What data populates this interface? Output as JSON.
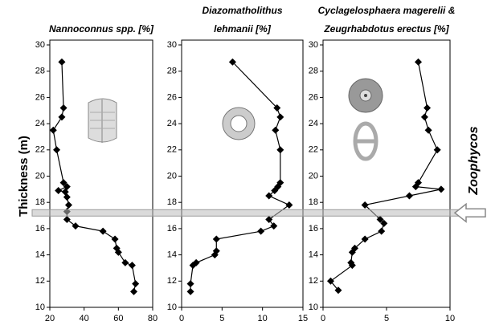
{
  "chart_data": [
    {
      "type": "line",
      "title": [
        "Nannoconnus spp. [%]"
      ],
      "ylabel": "Thickness (m)",
      "x": [
        27,
        28,
        27,
        22,
        24,
        28,
        30,
        25,
        29,
        30,
        31,
        30,
        30,
        35,
        51,
        58,
        59,
        60,
        64,
        68,
        70,
        69
      ],
      "values": [
        28.7,
        25.2,
        24.5,
        23.5,
        22,
        19.5,
        19.2,
        18.9,
        18.8,
        18.4,
        17.8,
        17.3,
        16.7,
        16.2,
        15.8,
        15.2,
        14.5,
        14.2,
        13.4,
        13.2,
        11.8,
        11.2
      ],
      "color": "#000000",
      "xlim": [
        20,
        80
      ],
      "xticks": [
        20,
        40,
        60,
        80
      ],
      "ylim": [
        10,
        30
      ],
      "yticks": [
        10,
        12,
        14,
        16,
        18,
        20,
        22,
        24,
        26,
        28,
        30
      ]
    },
    {
      "type": "line",
      "title": [
        "Diazomatholithus",
        "lehmanii [%]"
      ],
      "x": [
        6.3,
        11.8,
        12.2,
        11.6,
        12.2,
        12.2,
        11.9,
        11.5,
        10.8,
        13.3,
        10.8,
        11.4,
        9.8,
        4.3,
        4.3,
        4.1,
        1.8,
        1.4,
        1.1,
        1.1
      ],
      "values": [
        28.7,
        25.2,
        24.5,
        23.5,
        22,
        19.5,
        19.2,
        18.9,
        18.5,
        17.8,
        16.7,
        16.2,
        15.8,
        15.2,
        14.3,
        14.0,
        13.4,
        13.2,
        11.8,
        11.2
      ],
      "color": "#000000",
      "xlim": [
        0,
        15
      ],
      "xticks": [
        0,
        5,
        10,
        15
      ],
      "ylim": [
        10,
        30
      ],
      "yticks": [
        10,
        12,
        14,
        16,
        18,
        20,
        22,
        24,
        26,
        28,
        30
      ]
    },
    {
      "type": "line",
      "title": [
        "Cyclagelosphaera magerelii &",
        "Zeugrhabdotus erectus [%]"
      ],
      "x": [
        7.5,
        8.2,
        8.0,
        8.3,
        9.0,
        7.5,
        7.3,
        9.3,
        6.8,
        3.3,
        4.5,
        4.8,
        4.6,
        3.3,
        2.5,
        2.3,
        2.2,
        2.3,
        0.6,
        1.2
      ],
      "values": [
        28.7,
        25.2,
        24.5,
        23.5,
        22,
        19.5,
        19.2,
        19,
        18.5,
        17.8,
        16.7,
        16.4,
        15.8,
        15.2,
        14.5,
        14.2,
        13.4,
        13.2,
        12,
        11.3
      ],
      "color": "#000000",
      "xlim": [
        0,
        10
      ],
      "xticks": [
        0,
        5,
        10
      ],
      "ylim": [
        10,
        30
      ],
      "yticks": [
        10,
        12,
        14,
        16,
        18,
        20,
        22,
        24,
        26,
        28,
        30
      ],
      "annotation": {
        "text": "Zoophycos",
        "y": 17.2
      }
    }
  ]
}
